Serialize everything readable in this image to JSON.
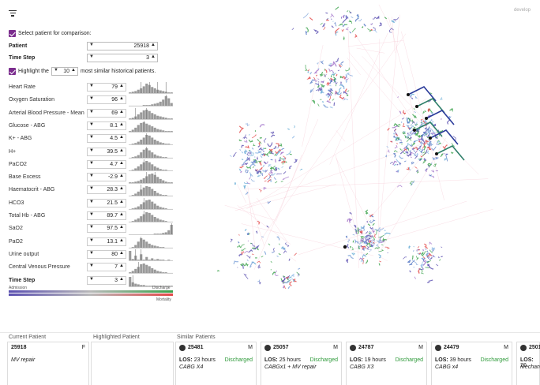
{
  "app": {
    "env_label": "develop"
  },
  "controls": {
    "select_patient_label": "Select patient for comparison:",
    "patient_label": "Patient",
    "patient_value": "25918",
    "time_step_label": "Time Step",
    "time_step_value": "3",
    "highlight_prefix": "Highlight the",
    "highlight_count": "10",
    "highlight_suffix": "most similar historical patients."
  },
  "features": [
    {
      "name": "Heart Rate",
      "value": "79",
      "bold": false,
      "hist": [
        1,
        2,
        3,
        5,
        7,
        10,
        14,
        12,
        9,
        7,
        5,
        4,
        3,
        2,
        1,
        1
      ],
      "spikes": [
        4,
        7,
        10,
        13
      ]
    },
    {
      "name": "Oxygen Saturation",
      "value": "96",
      "bold": false,
      "hist": [
        0,
        0,
        0,
        0,
        0,
        1,
        1,
        1,
        2,
        3,
        4,
        6,
        9,
        14,
        11,
        4
      ],
      "spikes": [
        13
      ]
    },
    {
      "name": "Arterial Blood Pressure - Mean",
      "value": "69",
      "bold": false,
      "hist": [
        1,
        2,
        4,
        7,
        10,
        13,
        14,
        12,
        9,
        7,
        5,
        4,
        3,
        2,
        1,
        1
      ],
      "spikes": [
        2,
        6
      ]
    },
    {
      "name": "Glucose - ABG",
      "value": "8.1",
      "bold": false,
      "hist": [
        1,
        3,
        6,
        10,
        13,
        14,
        12,
        10,
        8,
        6,
        4,
        3,
        2,
        1,
        1,
        1
      ],
      "spikes": [
        5
      ]
    },
    {
      "name": "K+ - ABG",
      "value": "4.5",
      "bold": false,
      "hist": [
        0,
        1,
        2,
        4,
        7,
        10,
        14,
        13,
        10,
        7,
        5,
        3,
        2,
        1,
        1,
        0
      ],
      "spikes": [
        6
      ]
    },
    {
      "name": "H+",
      "value": "39.5",
      "bold": false,
      "hist": [
        0,
        1,
        2,
        4,
        8,
        12,
        14,
        11,
        8,
        5,
        3,
        2,
        1,
        1,
        0,
        0
      ],
      "spikes": [
        6
      ]
    },
    {
      "name": "PaCO2",
      "value": "4.7",
      "bold": false,
      "hist": [
        0,
        1,
        3,
        6,
        9,
        12,
        14,
        12,
        9,
        6,
        4,
        2,
        1,
        1,
        0,
        0
      ],
      "spikes": [
        5
      ]
    },
    {
      "name": "Base Excess",
      "value": "-2.9",
      "bold": false,
      "hist": [
        1,
        1,
        2,
        3,
        5,
        7,
        10,
        13,
        14,
        12,
        9,
        6,
        4,
        2,
        1,
        1
      ],
      "spikes": [
        6,
        9
      ]
    },
    {
      "name": "Haematocrit - ABG",
      "value": "28.3",
      "bold": false,
      "hist": [
        0,
        1,
        3,
        6,
        9,
        12,
        14,
        13,
        10,
        7,
        4,
        2,
        1,
        1,
        0,
        0
      ],
      "spikes": [
        4
      ]
    },
    {
      "name": "HCO3",
      "value": "21.5",
      "bold": false,
      "hist": [
        0,
        1,
        2,
        4,
        7,
        10,
        13,
        14,
        11,
        8,
        5,
        3,
        2,
        1,
        0,
        0
      ],
      "spikes": [
        5
      ]
    },
    {
      "name": "Total Hb - ABG",
      "value": "89.7",
      "bold": false,
      "hist": [
        0,
        1,
        3,
        5,
        8,
        11,
        14,
        13,
        10,
        7,
        5,
        3,
        2,
        1,
        0,
        0
      ],
      "spikes": [
        5
      ]
    },
    {
      "name": "SaO2",
      "value": "97.5",
      "bold": false,
      "hist": [
        0,
        0,
        0,
        0,
        0,
        0,
        0,
        0,
        0,
        1,
        1,
        1,
        2,
        3,
        6,
        14
      ],
      "spikes": [
        15
      ]
    },
    {
      "name": "PaO2",
      "value": "13.1",
      "bold": false,
      "hist": [
        0,
        1,
        4,
        9,
        14,
        12,
        9,
        6,
        4,
        3,
        2,
        1,
        1,
        0,
        0,
        0
      ],
      "spikes": [
        4
      ]
    },
    {
      "name": "Urine output",
      "value": "80",
      "bold": false,
      "hist": [
        14,
        2,
        7,
        1,
        9,
        1,
        5,
        1,
        3,
        1,
        2,
        1,
        1,
        0,
        1,
        0
      ],
      "spikes": [
        2,
        4
      ]
    },
    {
      "name": "Central Venous Pressure",
      "value": "7",
      "bold": false,
      "hist": [
        1,
        3,
        6,
        9,
        13,
        14,
        12,
        10,
        7,
        5,
        3,
        2,
        1,
        1,
        0,
        0
      ],
      "spikes": [
        3
      ]
    },
    {
      "name": "Time Step",
      "value": "3",
      "bold": true,
      "hist": [
        14,
        6,
        4,
        3,
        2,
        2,
        1,
        1,
        1,
        1,
        1,
        1,
        1,
        1,
        1,
        1
      ],
      "spikes": [
        1
      ]
    }
  ],
  "legend": {
    "left": "Admission",
    "right_top": "Discharge",
    "right_bottom": "Mortality",
    "colors": {
      "admission": "#5a4fb0",
      "discharge": "#3aa14a",
      "mortality": "#e24646",
      "mid": "#b8b8b8"
    }
  },
  "bottom": {
    "current_title": "Current Patient",
    "current": {
      "id": "25918",
      "sex": "F",
      "procedure": "MV repair"
    },
    "highlighted_title": "Highlighted Patient",
    "similar_title": "Similar Patients",
    "similar": [
      {
        "id": "25481",
        "sex": "M",
        "los": "23 hours",
        "status": "Discharged",
        "procedure": "CABG X4"
      },
      {
        "id": "25057",
        "sex": "M",
        "los": "25 hours",
        "status": "Discharged",
        "procedure": "CABGx1 + MV repair"
      },
      {
        "id": "24787",
        "sex": "M",
        "los": "19 hours",
        "status": "Discharged",
        "procedure": "CABG X3"
      },
      {
        "id": "24479",
        "sex": "M",
        "los": "39 hours",
        "status": "Discharged",
        "procedure": "CABG x4"
      },
      {
        "id": "2501",
        "sex": "",
        "los": "20",
        "status": "",
        "procedure": "Mechan"
      }
    ],
    "los_label": "LOS:"
  }
}
